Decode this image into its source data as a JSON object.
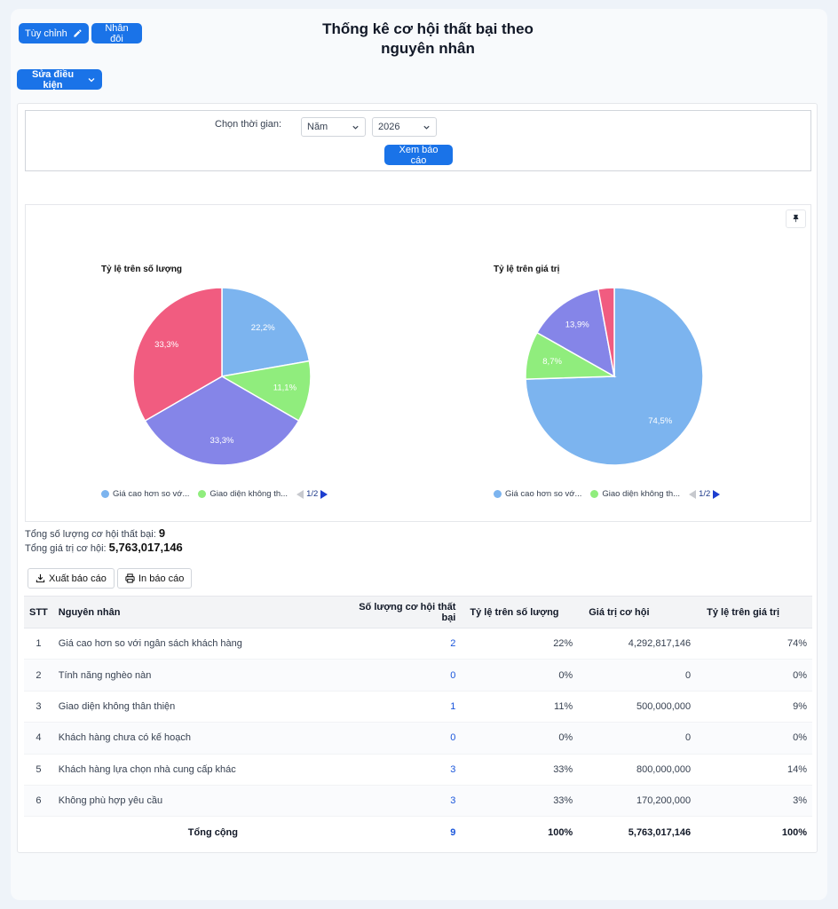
{
  "header": {
    "customize_label": "Tùy chỉnh",
    "duplicate_label": "Nhân đôi",
    "title": "Thống kê cơ hội thất bại theo nguyên nhân",
    "edit_conditions_label": "Sửa điều kiện"
  },
  "filter": {
    "time_label": "Chọn thời gian:",
    "period_value": "Năm",
    "year_value": "2026",
    "view_report_label": "Xem báo cáo"
  },
  "colors": {
    "blue": "#7cb4ef",
    "green": "#90ed7d",
    "purple": "#8585e8",
    "red": "#f15c80",
    "accent": "#1a73e8"
  },
  "chart_data": [
    {
      "type": "pie",
      "title": "Tỷ lệ trên số lượng",
      "slices": [
        {
          "label": "Giá cao hơn so với ngân sách khách hàng",
          "value": 22.2,
          "display": "22,2%",
          "color": "#7cb4ef"
        },
        {
          "label": "Giao diện không thân thiện",
          "value": 11.1,
          "display": "11,1%",
          "color": "#90ed7d"
        },
        {
          "label": "Khách hàng lựa chọn nhà cung cấp khác",
          "value": 33.3,
          "display": "33,3%",
          "color": "#8585e8"
        },
        {
          "label": "Không phù hợp yêu cầu",
          "value": 33.3,
          "display": "33,3%",
          "color": "#f15c80"
        }
      ],
      "legend": [
        "Giá cao hơn so vớ...",
        "Giao diện không th..."
      ],
      "legend_page": "1/2"
    },
    {
      "type": "pie",
      "title": "Tỷ lệ trên giá trị",
      "slices": [
        {
          "label": "Giá cao hơn so với ngân sách khách hàng",
          "value": 74.5,
          "display": "74,5%",
          "color": "#7cb4ef"
        },
        {
          "label": "Giao diện không thân thiện",
          "value": 8.7,
          "display": "8,7%",
          "color": "#90ed7d"
        },
        {
          "label": "Khách hàng lựa chọn nhà cung cấp khác",
          "value": 13.9,
          "display": "13,9%",
          "color": "#8585e8"
        },
        {
          "label": "Không phù hợp yêu cầu",
          "value": 2.9,
          "display": "",
          "color": "#f15c80"
        }
      ],
      "legend": [
        "Giá cao hơn so vớ...",
        "Giao diện không th..."
      ],
      "legend_page": "1/2"
    }
  ],
  "summary": {
    "count_label": "Tổng số lượng cơ hội thất bại:",
    "count_value": "9",
    "value_label": "Tổng giá trị cơ hội:",
    "value_value": "5,763,017,146"
  },
  "actions": {
    "export_label": "Xuất báo cáo",
    "print_label": "In báo cáo"
  },
  "table": {
    "headers": [
      "STT",
      "Nguyên nhân",
      "Số lượng cơ hội thất bại",
      "Tỷ lệ trên số lượng",
      "Giá trị cơ hội",
      "Tỷ lệ trên giá trị"
    ],
    "rows": [
      [
        "1",
        "Giá cao hơn so với ngân sách khách hàng",
        "2",
        "22%",
        "4,292,817,146",
        "74%"
      ],
      [
        "2",
        "Tính năng nghèo nàn",
        "0",
        "0%",
        "0",
        "0%"
      ],
      [
        "3",
        "Giao diện không thân thiện",
        "1",
        "11%",
        "500,000,000",
        "9%"
      ],
      [
        "4",
        "Khách hàng chưa có kế hoạch",
        "0",
        "0%",
        "0",
        "0%"
      ],
      [
        "5",
        "Khách hàng lựa chọn nhà cung cấp khác",
        "3",
        "33%",
        "800,000,000",
        "14%"
      ],
      [
        "6",
        "Không phù hợp yêu cầu",
        "3",
        "33%",
        "170,200,000",
        "3%"
      ]
    ],
    "total": {
      "label": "Tổng cộng",
      "count": "9",
      "count_pct": "100%",
      "value": "5,763,017,146",
      "value_pct": "100%"
    }
  }
}
